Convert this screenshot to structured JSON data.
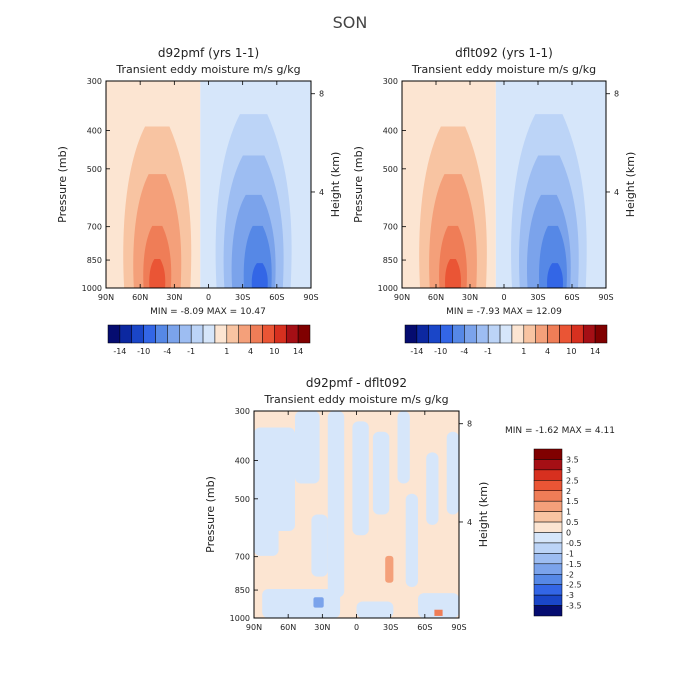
{
  "title": "SON",
  "colors": {
    "red": [
      "#fce5d2",
      "#f8c4a2",
      "#f4a07a",
      "#ef7d57",
      "#ea5535",
      "#d7301f",
      "#a50f15",
      "#800000"
    ],
    "blue": [
      "#d6e6fa",
      "#bcd4f7",
      "#9dbdf2",
      "#7ba3eb",
      "#5688e6",
      "#3366e6",
      "#1a46c8",
      "#0c28a0",
      "#050c70"
    ]
  },
  "chart_data": [
    {
      "type": "heatmap",
      "title": "d92pmf (yrs 1-1)",
      "subtitle": "Transient eddy moisture m/s g/kg",
      "ylabel": "Pressure (mb)",
      "ylabel_right": "Height (km)",
      "x_ticks": [
        "90N",
        "60N",
        "30N",
        "0",
        "30S",
        "60S",
        "90S"
      ],
      "y_ticks": [
        "300",
        "400",
        "500",
        "700",
        "850",
        "1000"
      ],
      "y_ticks_right": [
        "8",
        "4"
      ],
      "stats": "MIN =  -8.09   MAX =  10.47",
      "colorbar_labels": [
        "-14",
        "-10",
        "-4",
        "-1",
        "1",
        "4",
        "10",
        "14"
      ]
    },
    {
      "type": "heatmap",
      "title": "dflt092 (yrs 1-1)",
      "subtitle": "Transient eddy moisture m/s g/kg",
      "ylabel": "Pressure (mb)",
      "ylabel_right": "Height (km)",
      "x_ticks": [
        "90N",
        "60N",
        "30N",
        "0",
        "30S",
        "60S",
        "90S"
      ],
      "y_ticks": [
        "300",
        "400",
        "500",
        "700",
        "850",
        "1000"
      ],
      "y_ticks_right": [
        "8",
        "4"
      ],
      "stats": "MIN =  -7.93   MAX =  12.09",
      "colorbar_labels": [
        "-14",
        "-10",
        "-4",
        "-1",
        "1",
        "4",
        "10",
        "14"
      ]
    },
    {
      "type": "heatmap",
      "title": "d92pmf - dflt092",
      "subtitle": "Transient eddy moisture m/s g/kg",
      "ylabel": "Pressure (mb)",
      "ylabel_right": "Height (km)",
      "x_ticks": [
        "90N",
        "60N",
        "30N",
        "0",
        "30S",
        "60S",
        "90S"
      ],
      "y_ticks": [
        "300",
        "400",
        "500",
        "700",
        "850",
        "1000"
      ],
      "y_ticks_right": [
        "8",
        "4"
      ],
      "stats": "MIN =  -1.62   MAX =   4.11",
      "colorbar_labels": [
        "3.5",
        "3",
        "2.5",
        "2",
        "1.5",
        "1",
        "0.5",
        "0",
        "-0.5",
        "-1",
        "-1.5",
        "-2",
        "-2.5",
        "-3",
        "-3.5"
      ]
    }
  ]
}
